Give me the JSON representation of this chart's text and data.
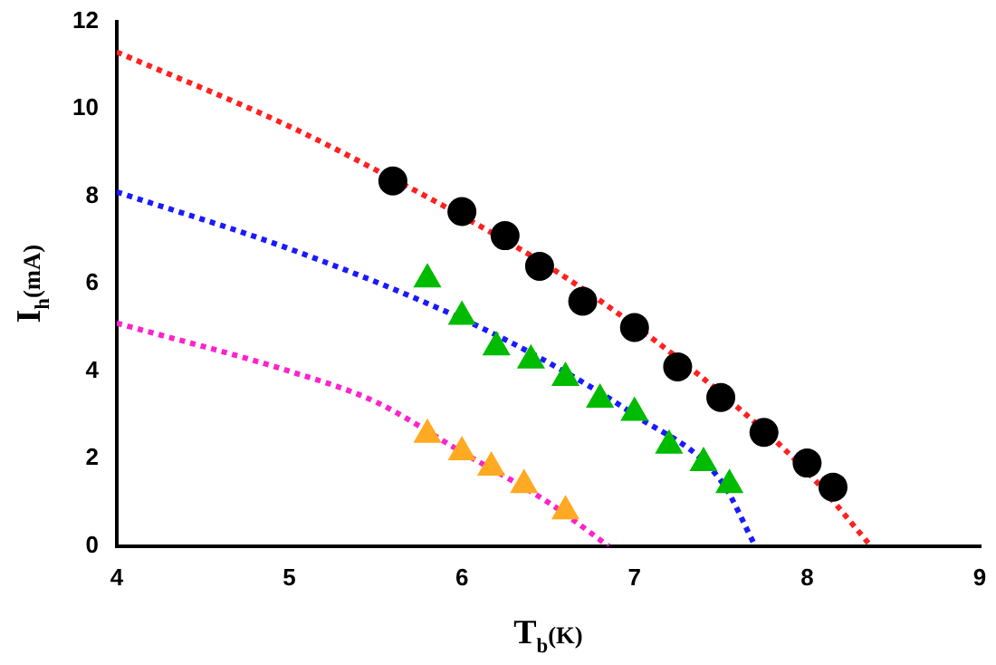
{
  "chart_data": {
    "type": "scatter",
    "xlabel": "T$_{b}$(K)",
    "ylabel": "I$_{h}$(mA)",
    "xlim": [
      4,
      9
    ],
    "xticks": [
      4,
      5,
      6,
      7,
      8,
      9
    ],
    "ylim": [
      0,
      12
    ],
    "yticks": [
      0,
      2,
      4,
      6,
      8,
      10,
      12
    ],
    "grid": false,
    "legend": false,
    "series": [
      {
        "type": "line",
        "line_style": "dotted",
        "marker": "none",
        "color": "#ff2020",
        "x": [
          4,
          5,
          5.6,
          6,
          6.5,
          7,
          7.5,
          8,
          8.37
        ],
        "values": [
          11.3,
          9.6,
          8.4,
          7.55,
          6.4,
          5.05,
          3.5,
          1.7,
          0
        ]
      },
      {
        "type": "line",
        "line_style": "dotted",
        "marker": "none",
        "color": "#1a1aff",
        "x": [
          4,
          5,
          6,
          6.5,
          7,
          7.5,
          7.7
        ],
        "values": [
          8.1,
          6.8,
          5.2,
          4.2,
          3.0,
          1.5,
          0
        ]
      },
      {
        "type": "line",
        "line_style": "dotted",
        "marker": "none",
        "color": "#ff22cc",
        "x": [
          4,
          5,
          5.5,
          6,
          6.5,
          6.85
        ],
        "values": [
          5.1,
          4.0,
          3.3,
          2.15,
          1.0,
          0
        ]
      },
      {
        "marker": "circle",
        "color": "#000000",
        "x": [
          5.6,
          6.0,
          6.25,
          6.45,
          6.7,
          7.0,
          7.25,
          7.5,
          7.75,
          8.0,
          8.15
        ],
        "values": [
          8.35,
          7.65,
          7.1,
          6.4,
          5.6,
          5.0,
          4.1,
          3.4,
          2.6,
          1.9,
          1.35
        ]
      },
      {
        "marker": "triangle",
        "color": "#00bb00",
        "x": [
          5.8,
          6.0,
          6.2,
          6.4,
          6.6,
          6.8,
          7.0,
          7.2,
          7.4,
          7.55
        ],
        "values": [
          6.1,
          5.25,
          4.55,
          4.25,
          3.85,
          3.35,
          3.05,
          2.3,
          1.9,
          1.4
        ]
      },
      {
        "marker": "triangle",
        "color": "#ffaa22",
        "x": [
          5.8,
          6.0,
          6.17,
          6.36,
          6.6
        ],
        "values": [
          2.55,
          2.15,
          1.8,
          1.4,
          0.8
        ]
      }
    ]
  }
}
